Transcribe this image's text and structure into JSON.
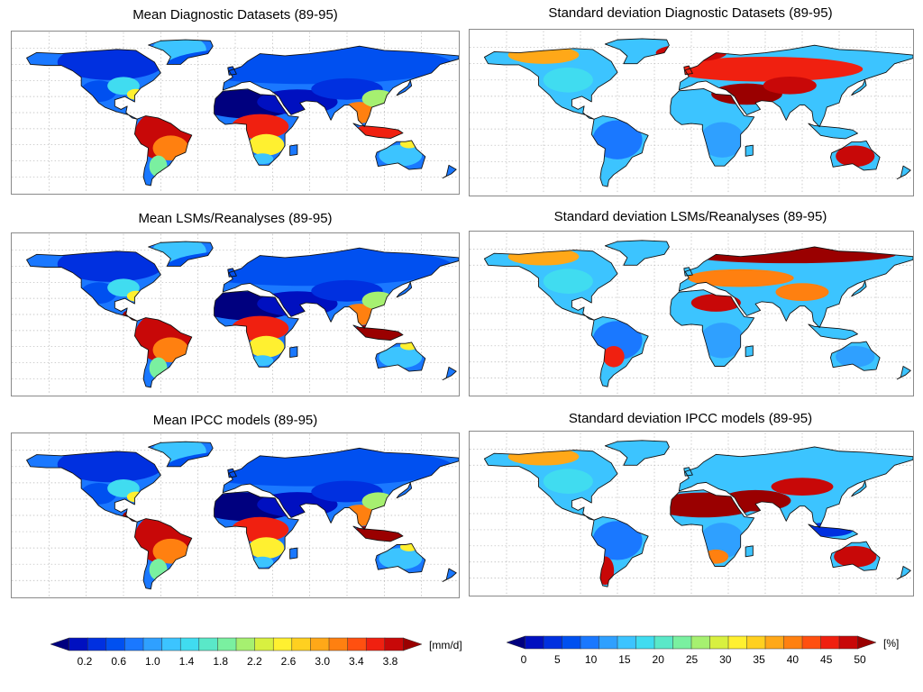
{
  "panels": [
    {
      "id": "mean-diag",
      "title": "Mean Diagnostic Datasets (89-95)",
      "scheme": "mean"
    },
    {
      "id": "sd-diag",
      "title": "Standard deviation Diagnostic Datasets (89-95)",
      "scheme": "sd"
    },
    {
      "id": "mean-lsm",
      "title": "Mean LSMs/Reanalyses (89-95)",
      "scheme": "mean"
    },
    {
      "id": "sd-lsm",
      "title": "Standard deviation LSMs/Reanalyses (89-95)",
      "scheme": "sd"
    },
    {
      "id": "mean-ipcc",
      "title": "Mean IPCC models (89-95)",
      "scheme": "mean"
    },
    {
      "id": "sd-ipcc",
      "title": "Standard deviation IPCC models (89-95)",
      "scheme": "sd"
    }
  ],
  "colorbars": {
    "mean": {
      "unit": "[mm/d]",
      "ticks": [
        "0.2",
        "0.6",
        "1.0",
        "1.4",
        "1.8",
        "2.2",
        "2.6",
        "3.0",
        "3.4",
        "3.8"
      ],
      "colors": [
        "#00007f",
        "#0010c0",
        "#0030e0",
        "#0050f0",
        "#1a78ff",
        "#2fa0ff",
        "#3cc4ff",
        "#40dcf0",
        "#5ae8c8",
        "#7af0a0",
        "#a6f070",
        "#d8f040",
        "#fff030",
        "#ffd020",
        "#ffa818",
        "#ff8010",
        "#ff5010",
        "#f02010",
        "#c80808",
        "#9a0000"
      ]
    },
    "sd": {
      "unit": "[%]",
      "ticks": [
        "0",
        "5",
        "10",
        "15",
        "20",
        "25",
        "30",
        "35",
        "40",
        "45",
        "50"
      ],
      "colors": [
        "#00007f",
        "#0010c0",
        "#0030e0",
        "#0050f0",
        "#1a78ff",
        "#2fa0ff",
        "#3cc4ff",
        "#40dcf0",
        "#5ae8c8",
        "#7af0a0",
        "#a6f070",
        "#d8f040",
        "#fff030",
        "#ffd020",
        "#ffa818",
        "#ff8010",
        "#ff5010",
        "#f02010",
        "#c80808",
        "#9a0000"
      ]
    }
  }
}
